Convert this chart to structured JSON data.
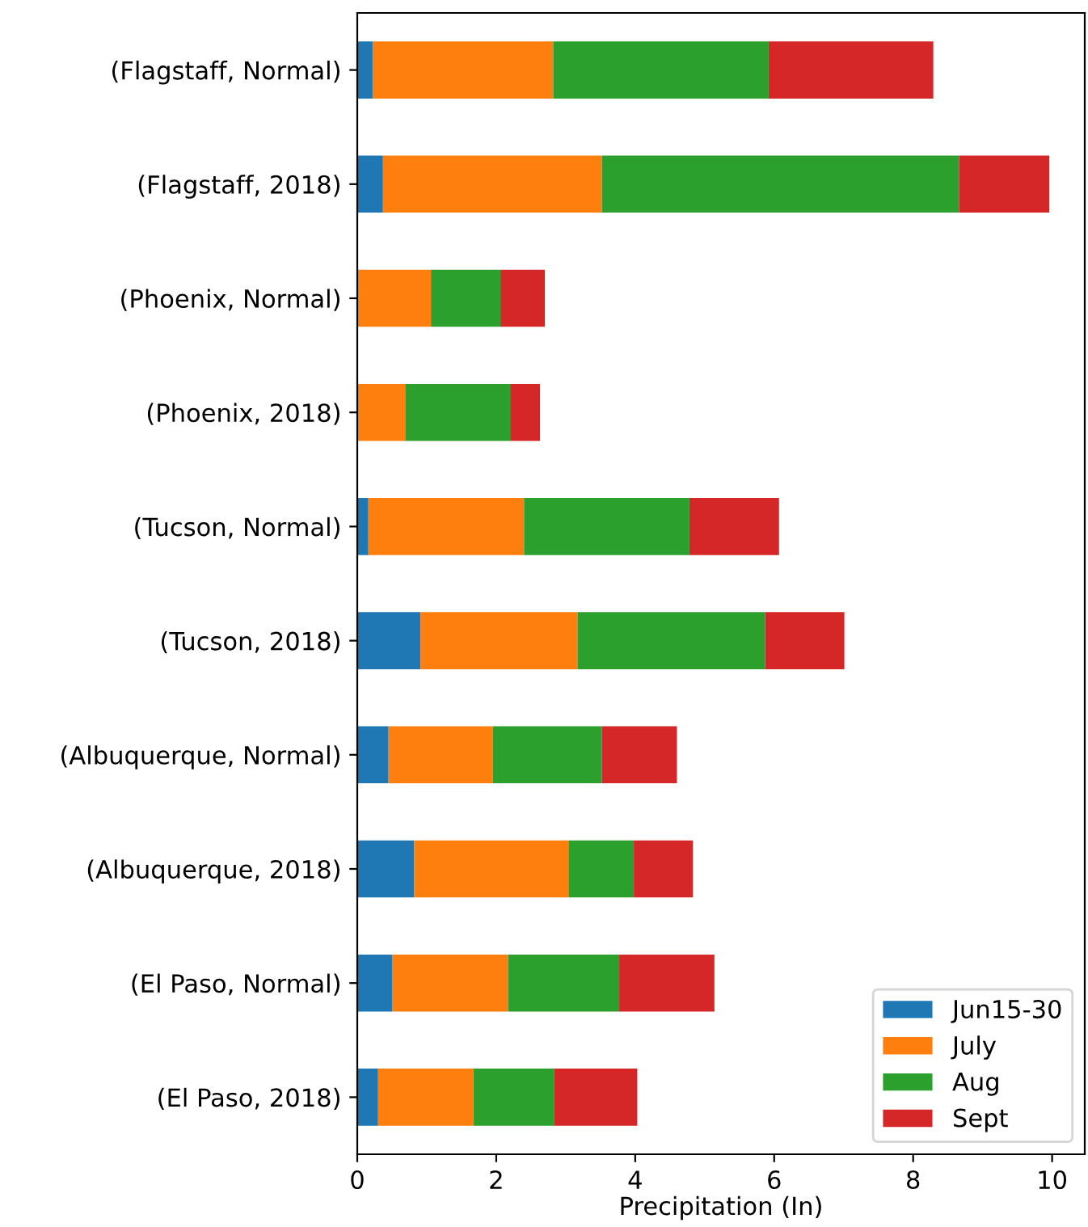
{
  "chart_data": {
    "type": "bar",
    "orientation": "horizontal",
    "stacked": true,
    "xlabel": "Precipitation (In)",
    "categories": [
      "(Flagstaff, Normal)",
      "(Flagstaff, 2018)",
      "(Phoenix, Normal)",
      "(Phoenix, 2018)",
      "(Tucson, Normal)",
      "(Tucson, 2018)",
      "(Albuquerque, Normal)",
      "(Albuquerque, 2018)",
      "(El Paso, Normal)",
      "(El Paso, 2018)"
    ],
    "series": [
      {
        "name": "Jun15-30",
        "color": "#1f77b4",
        "values": [
          0.22,
          0.37,
          0,
          0,
          0.16,
          0.91,
          0.45,
          0.82,
          0.5,
          0.3
        ]
      },
      {
        "name": "July",
        "color": "#ff7f0e",
        "values": [
          2.6,
          3.15,
          1.06,
          0.69,
          2.24,
          2.26,
          1.5,
          2.22,
          1.67,
          1.37
        ]
      },
      {
        "name": "Aug",
        "color": "#2ca02c",
        "values": [
          3.1,
          5.14,
          1.0,
          1.51,
          2.38,
          2.7,
          1.57,
          0.94,
          1.6,
          1.16
        ]
      },
      {
        "name": "Sept",
        "color": "#d62728",
        "values": [
          2.37,
          1.3,
          0.64,
          0.43,
          1.29,
          1.14,
          1.08,
          0.85,
          1.37,
          1.2
        ]
      }
    ],
    "xlim": [
      0,
      10.47
    ],
    "xticks": [
      0,
      2,
      4,
      6,
      8,
      10
    ],
    "legend": "bottom right",
    "grid": false
  }
}
